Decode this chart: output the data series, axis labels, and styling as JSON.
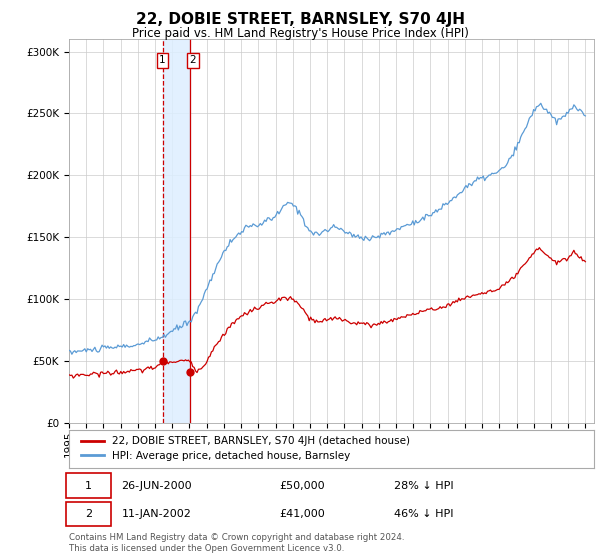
{
  "title": "22, DOBIE STREET, BARNSLEY, S70 4JH",
  "subtitle": "Price paid vs. HM Land Registry's House Price Index (HPI)",
  "title_fontsize": 11,
  "subtitle_fontsize": 8.5,
  "background_color": "#ffffff",
  "grid_color": "#cccccc",
  "plot_bg_color": "#ffffff",
  "legend_label_red": "22, DOBIE STREET, BARNSLEY, S70 4JH (detached house)",
  "legend_label_blue": "HPI: Average price, detached house, Barnsley",
  "transaction1_date": 2000.48,
  "transaction1_price": 50000,
  "transaction2_date": 2002.03,
  "transaction2_price": 41000,
  "footer_text": "Contains HM Land Registry data © Crown copyright and database right 2024.\nThis data is licensed under the Open Government Licence v3.0.",
  "table_row1": [
    "1",
    "26-JUN-2000",
    "£50,000",
    "28% ↓ HPI"
  ],
  "table_row2": [
    "2",
    "11-JAN-2002",
    "£41,000",
    "46% ↓ HPI"
  ],
  "ylim": [
    0,
    310000
  ],
  "xlim_start": 1995.0,
  "xlim_end": 2025.5,
  "hpi_anchors": [
    [
      1995.0,
      57000
    ],
    [
      1996.0,
      58500
    ],
    [
      1997.0,
      60000
    ],
    [
      1998.0,
      61500
    ],
    [
      1999.0,
      63000
    ],
    [
      2000.0,
      67000
    ],
    [
      2000.5,
      70000
    ],
    [
      2001.0,
      74000
    ],
    [
      2002.0,
      82000
    ],
    [
      2002.5,
      92000
    ],
    [
      2003.0,
      108000
    ],
    [
      2003.5,
      125000
    ],
    [
      2004.0,
      138000
    ],
    [
      2004.5,
      148000
    ],
    [
      2005.0,
      155000
    ],
    [
      2005.5,
      158000
    ],
    [
      2006.0,
      160000
    ],
    [
      2006.5,
      163000
    ],
    [
      2007.0,
      167000
    ],
    [
      2007.5,
      175000
    ],
    [
      2007.9,
      178000
    ],
    [
      2008.3,
      172000
    ],
    [
      2008.7,
      162000
    ],
    [
      2009.0,
      155000
    ],
    [
      2009.5,
      152000
    ],
    [
      2010.0,
      156000
    ],
    [
      2010.5,
      158000
    ],
    [
      2011.0,
      155000
    ],
    [
      2011.5,
      151000
    ],
    [
      2012.0,
      150000
    ],
    [
      2012.5,
      149000
    ],
    [
      2013.0,
      151000
    ],
    [
      2013.5,
      153000
    ],
    [
      2014.0,
      156000
    ],
    [
      2014.5,
      159000
    ],
    [
      2015.0,
      162000
    ],
    [
      2015.5,
      165000
    ],
    [
      2016.0,
      168000
    ],
    [
      2016.5,
      172000
    ],
    [
      2017.0,
      178000
    ],
    [
      2017.5,
      183000
    ],
    [
      2018.0,
      190000
    ],
    [
      2018.5,
      194000
    ],
    [
      2019.0,
      198000
    ],
    [
      2019.5,
      200000
    ],
    [
      2020.0,
      203000
    ],
    [
      2020.5,
      210000
    ],
    [
      2021.0,
      222000
    ],
    [
      2021.5,
      238000
    ],
    [
      2022.0,
      252000
    ],
    [
      2022.3,
      258000
    ],
    [
      2022.6,
      255000
    ],
    [
      2023.0,
      248000
    ],
    [
      2023.3,
      243000
    ],
    [
      2023.6,
      246000
    ],
    [
      2024.0,
      250000
    ],
    [
      2024.3,
      257000
    ],
    [
      2024.6,
      254000
    ],
    [
      2024.9,
      248000
    ]
  ],
  "red_anchors": [
    [
      1995.0,
      38000
    ],
    [
      1996.0,
      39000
    ],
    [
      1997.0,
      40000
    ],
    [
      1998.0,
      41000
    ],
    [
      1999.0,
      42000
    ],
    [
      2000.0,
      45000
    ],
    [
      2000.5,
      48500
    ],
    [
      2001.0,
      49500
    ],
    [
      2001.5,
      50000
    ],
    [
      2002.0,
      50000
    ],
    [
      2002.1,
      48000
    ],
    [
      2002.3,
      43000
    ],
    [
      2002.5,
      42000
    ],
    [
      2003.0,
      50000
    ],
    [
      2003.5,
      62000
    ],
    [
      2004.0,
      72000
    ],
    [
      2004.5,
      80000
    ],
    [
      2005.0,
      86000
    ],
    [
      2005.5,
      90000
    ],
    [
      2006.0,
      93000
    ],
    [
      2006.5,
      96000
    ],
    [
      2007.0,
      98000
    ],
    [
      2007.5,
      101000
    ],
    [
      2008.0,
      100000
    ],
    [
      2008.5,
      93000
    ],
    [
      2009.0,
      84000
    ],
    [
      2009.5,
      81000
    ],
    [
      2010.0,
      83000
    ],
    [
      2010.5,
      85000
    ],
    [
      2011.0,
      83000
    ],
    [
      2011.5,
      81000
    ],
    [
      2012.0,
      80000
    ],
    [
      2012.5,
      79000
    ],
    [
      2013.0,
      80000
    ],
    [
      2013.5,
      82000
    ],
    [
      2014.0,
      84000
    ],
    [
      2014.5,
      86000
    ],
    [
      2015.0,
      88000
    ],
    [
      2015.5,
      90000
    ],
    [
      2016.0,
      91000
    ],
    [
      2016.5,
      93000
    ],
    [
      2017.0,
      95000
    ],
    [
      2017.5,
      98000
    ],
    [
      2018.0,
      101000
    ],
    [
      2018.5,
      103000
    ],
    [
      2019.0,
      105000
    ],
    [
      2019.5,
      106000
    ],
    [
      2020.0,
      108000
    ],
    [
      2020.5,
      113000
    ],
    [
      2021.0,
      120000
    ],
    [
      2021.5,
      128000
    ],
    [
      2022.0,
      137000
    ],
    [
      2022.3,
      141000
    ],
    [
      2022.6,
      138000
    ],
    [
      2023.0,
      133000
    ],
    [
      2023.3,
      129000
    ],
    [
      2023.6,
      131000
    ],
    [
      2024.0,
      133000
    ],
    [
      2024.3,
      138000
    ],
    [
      2024.6,
      135000
    ],
    [
      2024.9,
      131000
    ]
  ]
}
